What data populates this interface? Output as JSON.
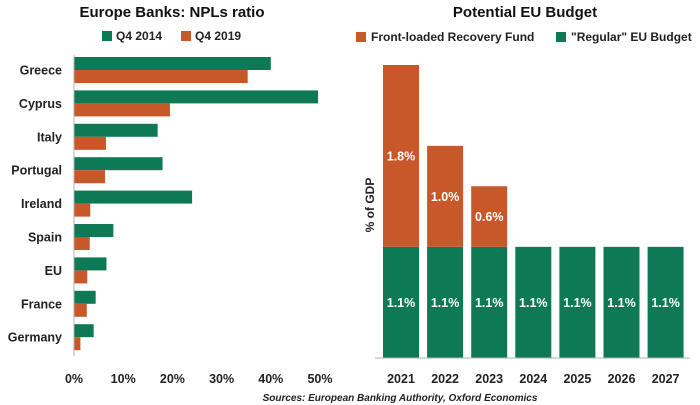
{
  "colors": {
    "series_green": "#0e7a55",
    "series_orange": "#c8572a",
    "axis": "#b0b0b0"
  },
  "source": "Sources: European Banking Authority, Oxford Economics",
  "chart_data": [
    {
      "type": "bar",
      "orientation": "horizontal",
      "title": "Europe Banks: NPLs ratio",
      "categories": [
        "Greece",
        "Cyprus",
        "Italy",
        "Portugal",
        "Ireland",
        "Spain",
        "EU",
        "France",
        "Germany"
      ],
      "series": [
        {
          "name": "Q4 2014",
          "color": "#0e7a55",
          "values": [
            40,
            49.6,
            17,
            18,
            24,
            8,
            6.6,
            4.4,
            4
          ]
        },
        {
          "name": "Q4 2019",
          "color": "#c8572a",
          "values": [
            35.3,
            19.5,
            6.5,
            6.3,
            3.3,
            3.2,
            2.7,
            2.6,
            1.3
          ]
        }
      ],
      "xlim": [
        0,
        50
      ],
      "xticks": [
        "0%",
        "10%",
        "20%",
        "30%",
        "40%",
        "50%"
      ],
      "legend_position": "top"
    },
    {
      "type": "bar",
      "stacked": true,
      "title": "Potential EU Budget",
      "ylabel": "% of GDP",
      "categories": [
        "2021",
        "2022",
        "2023",
        "2024",
        "2025",
        "2026",
        "2027"
      ],
      "series": [
        {
          "name": "Front-loaded Recovery Fund",
          "color": "#c8572a",
          "values": [
            1.8,
            1.0,
            0.6,
            0,
            0,
            0,
            0
          ],
          "labels": [
            "1.8%",
            "1.0%",
            "0.6%",
            "",
            "",
            "",
            ""
          ]
        },
        {
          "name": "\"Regular\" EU Budget",
          "color": "#0e7a55",
          "values": [
            1.1,
            1.1,
            1.1,
            1.1,
            1.1,
            1.1,
            1.1
          ],
          "labels": [
            "1.1%",
            "1.1%",
            "1.1%",
            "1.1%",
            "1.1%",
            "1.1%",
            "1.1%"
          ]
        }
      ],
      "ylim": [
        0,
        2.9
      ],
      "legend_position": "top"
    }
  ]
}
